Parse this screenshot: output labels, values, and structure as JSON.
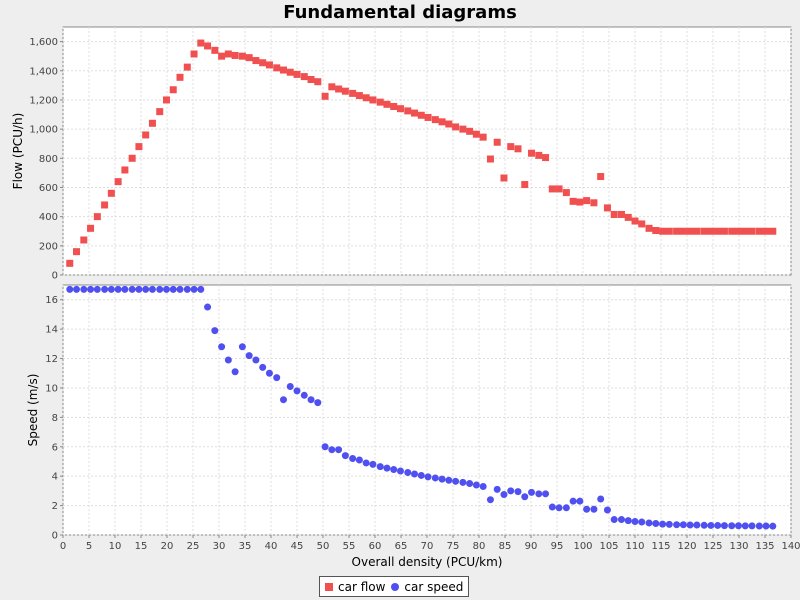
{
  "chart_data": {
    "type": "scatter",
    "title": "Fundamental diagrams",
    "xlabel": "Overall density (PCU/km)",
    "xlim": [
      0,
      140
    ],
    "x_ticks": [
      "0",
      "5",
      "10",
      "15",
      "20",
      "25",
      "30",
      "35",
      "40",
      "45",
      "50",
      "55",
      "60",
      "65",
      "70",
      "75",
      "80",
      "85",
      "90",
      "95",
      "100",
      "105",
      "110",
      "115",
      "120",
      "125",
      "130",
      "135",
      "140"
    ],
    "grid": true,
    "legend_position": "bottom-center",
    "panels": [
      {
        "ylabel": "Flow (PCU/h)",
        "ylim": [
          0,
          1700
        ],
        "y_ticks": [
          "0",
          "200",
          "400",
          "600",
          "800",
          "1,000",
          "1,200",
          "1,400",
          "1,600"
        ],
        "series": [
          {
            "name": "car flow",
            "marker": "square",
            "color": "#f05050",
            "points": [
              [
                1.3,
                80
              ],
              [
                2.6,
                160
              ],
              [
                4.0,
                240
              ],
              [
                5.3,
                320
              ],
              [
                6.6,
                400
              ],
              [
                8.0,
                480
              ],
              [
                9.3,
                560
              ],
              [
                10.6,
                640
              ],
              [
                11.9,
                720
              ],
              [
                13.3,
                800
              ],
              [
                14.6,
                880
              ],
              [
                15.9,
                960
              ],
              [
                17.2,
                1040
              ],
              [
                18.6,
                1120
              ],
              [
                19.9,
                1200
              ],
              [
                21.2,
                1270
              ],
              [
                22.5,
                1355
              ],
              [
                23.9,
                1425
              ],
              [
                25.2,
                1515
              ],
              [
                26.5,
                1590
              ],
              [
                27.8,
                1570
              ],
              [
                29.2,
                1540
              ],
              [
                30.5,
                1500
              ],
              [
                31.8,
                1515
              ],
              [
                33.1,
                1505
              ],
              [
                34.5,
                1500
              ],
              [
                35.8,
                1490
              ],
              [
                37.1,
                1470
              ],
              [
                38.4,
                1455
              ],
              [
                39.7,
                1440
              ],
              [
                41.1,
                1420
              ],
              [
                42.4,
                1405
              ],
              [
                43.7,
                1390
              ],
              [
                45.0,
                1375
              ],
              [
                46.4,
                1360
              ],
              [
                47.7,
                1340
              ],
              [
                49.0,
                1325
              ],
              [
                50.4,
                1225
              ],
              [
                51.7,
                1290
              ],
              [
                53.0,
                1275
              ],
              [
                54.3,
                1260
              ],
              [
                55.7,
                1245
              ],
              [
                57.0,
                1230
              ],
              [
                58.3,
                1215
              ],
              [
                59.6,
                1200
              ],
              [
                61.0,
                1185
              ],
              [
                62.3,
                1170
              ],
              [
                63.6,
                1155
              ],
              [
                64.9,
                1140
              ],
              [
                66.3,
                1125
              ],
              [
                67.6,
                1110
              ],
              [
                68.9,
                1095
              ],
              [
                70.2,
                1080
              ],
              [
                71.6,
                1065
              ],
              [
                72.9,
                1050
              ],
              [
                74.2,
                1035
              ],
              [
                75.5,
                1015
              ],
              [
                76.9,
                1000
              ],
              [
                78.2,
                985
              ],
              [
                79.5,
                965
              ],
              [
                80.8,
                945
              ],
              [
                82.2,
                795
              ],
              [
                83.5,
                910
              ],
              [
                84.8,
                665
              ],
              [
                86.1,
                880
              ],
              [
                87.5,
                865
              ],
              [
                88.8,
                620
              ],
              [
                90.1,
                835
              ],
              [
                91.5,
                820
              ],
              [
                92.8,
                805
              ],
              [
                94.1,
                590
              ],
              [
                95.4,
                590
              ],
              [
                96.8,
                565
              ],
              [
                98.1,
                505
              ],
              [
                99.4,
                500
              ],
              [
                100.7,
                510
              ],
              [
                102.1,
                495
              ],
              [
                103.4,
                675
              ],
              [
                104.7,
                460
              ],
              [
                106.0,
                415
              ],
              [
                107.4,
                415
              ],
              [
                108.7,
                395
              ],
              [
                110.0,
                370
              ],
              [
                111.3,
                350
              ],
              [
                112.7,
                320
              ],
              [
                114.0,
                305
              ],
              [
                115.3,
                300
              ],
              [
                116.6,
                300
              ],
              [
                118.0,
                300
              ],
              [
                119.3,
                300
              ],
              [
                120.6,
                300
              ],
              [
                121.9,
                300
              ],
              [
                123.3,
                300
              ],
              [
                124.6,
                300
              ],
              [
                125.9,
                300
              ],
              [
                127.2,
                300
              ],
              [
                128.6,
                300
              ],
              [
                129.9,
                300
              ],
              [
                131.2,
                300
              ],
              [
                132.5,
                300
              ],
              [
                133.9,
                300
              ],
              [
                135.2,
                300
              ],
              [
                136.5,
                300
              ]
            ]
          }
        ]
      },
      {
        "ylabel": "Speed (m/s)",
        "ylim": [
          0,
          17
        ],
        "y_ticks": [
          "0",
          "2",
          "4",
          "6",
          "8",
          "10",
          "12",
          "14",
          "16"
        ],
        "series": [
          {
            "name": "car speed",
            "marker": "circle",
            "color": "#5050f0",
            "points": [
              [
                1.3,
                16.7
              ],
              [
                2.6,
                16.7
              ],
              [
                4.0,
                16.7
              ],
              [
                5.3,
                16.7
              ],
              [
                6.6,
                16.7
              ],
              [
                8.0,
                16.7
              ],
              [
                9.3,
                16.7
              ],
              [
                10.6,
                16.7
              ],
              [
                11.9,
                16.7
              ],
              [
                13.3,
                16.7
              ],
              [
                14.6,
                16.7
              ],
              [
                15.9,
                16.7
              ],
              [
                17.2,
                16.7
              ],
              [
                18.6,
                16.7
              ],
              [
                19.9,
                16.7
              ],
              [
                21.2,
                16.7
              ],
              [
                22.5,
                16.7
              ],
              [
                23.9,
                16.7
              ],
              [
                25.2,
                16.7
              ],
              [
                26.5,
                16.7
              ],
              [
                27.8,
                15.5
              ],
              [
                29.2,
                13.9
              ],
              [
                30.5,
                12.8
              ],
              [
                31.8,
                11.9
              ],
              [
                33.1,
                11.1
              ],
              [
                34.5,
                12.8
              ],
              [
                35.8,
                12.2
              ],
              [
                37.1,
                11.9
              ],
              [
                38.4,
                11.4
              ],
              [
                39.7,
                11.0
              ],
              [
                41.1,
                10.7
              ],
              [
                42.4,
                9.2
              ],
              [
                43.7,
                10.1
              ],
              [
                45.0,
                9.8
              ],
              [
                46.4,
                9.5
              ],
              [
                47.7,
                9.2
              ],
              [
                49.0,
                9.0
              ],
              [
                50.4,
                6.0
              ],
              [
                51.7,
                5.8
              ],
              [
                53.0,
                5.8
              ],
              [
                54.3,
                5.4
              ],
              [
                55.7,
                5.2
              ],
              [
                57.0,
                5.1
              ],
              [
                58.3,
                4.9
              ],
              [
                59.6,
                4.8
              ],
              [
                61.0,
                4.65
              ],
              [
                62.3,
                4.55
              ],
              [
                63.6,
                4.45
              ],
              [
                64.9,
                4.35
              ],
              [
                66.3,
                4.25
              ],
              [
                67.6,
                4.15
              ],
              [
                68.9,
                4.05
              ],
              [
                70.2,
                3.95
              ],
              [
                71.6,
                3.88
              ],
              [
                72.9,
                3.8
              ],
              [
                74.2,
                3.72
              ],
              [
                75.5,
                3.65
              ],
              [
                76.9,
                3.58
              ],
              [
                78.2,
                3.5
              ],
              [
                79.5,
                3.4
              ],
              [
                80.8,
                3.3
              ],
              [
                82.2,
                2.4
              ],
              [
                83.5,
                3.1
              ],
              [
                84.8,
                2.75
              ],
              [
                86.1,
                3.0
              ],
              [
                87.5,
                2.95
              ],
              [
                88.8,
                2.6
              ],
              [
                90.1,
                2.9
              ],
              [
                91.5,
                2.8
              ],
              [
                92.8,
                2.8
              ],
              [
                94.1,
                1.9
              ],
              [
                95.4,
                1.85
              ],
              [
                96.8,
                1.85
              ],
              [
                98.1,
                2.3
              ],
              [
                99.4,
                2.3
              ],
              [
                100.7,
                1.75
              ],
              [
                102.1,
                1.75
              ],
              [
                103.4,
                2.45
              ],
              [
                104.7,
                1.7
              ],
              [
                106.0,
                1.05
              ],
              [
                107.4,
                1.05
              ],
              [
                108.7,
                0.98
              ],
              [
                110.0,
                0.92
              ],
              [
                111.3,
                0.88
              ],
              [
                112.7,
                0.82
              ],
              [
                114.0,
                0.78
              ],
              [
                115.3,
                0.74
              ],
              [
                116.6,
                0.72
              ],
              [
                118.0,
                0.7
              ],
              [
                119.3,
                0.7
              ],
              [
                120.6,
                0.68
              ],
              [
                121.9,
                0.68
              ],
              [
                123.3,
                0.66
              ],
              [
                124.6,
                0.65
              ],
              [
                125.9,
                0.65
              ],
              [
                127.2,
                0.64
              ],
              [
                128.6,
                0.63
              ],
              [
                129.9,
                0.63
              ],
              [
                131.2,
                0.62
              ],
              [
                132.5,
                0.62
              ],
              [
                133.9,
                0.61
              ],
              [
                135.2,
                0.61
              ],
              [
                136.5,
                0.6
              ]
            ]
          }
        ]
      }
    ],
    "legend": [
      {
        "label": "car flow",
        "marker": "square",
        "color": "#f05050"
      },
      {
        "label": "car speed",
        "marker": "circle",
        "color": "#5050f0"
      }
    ]
  }
}
